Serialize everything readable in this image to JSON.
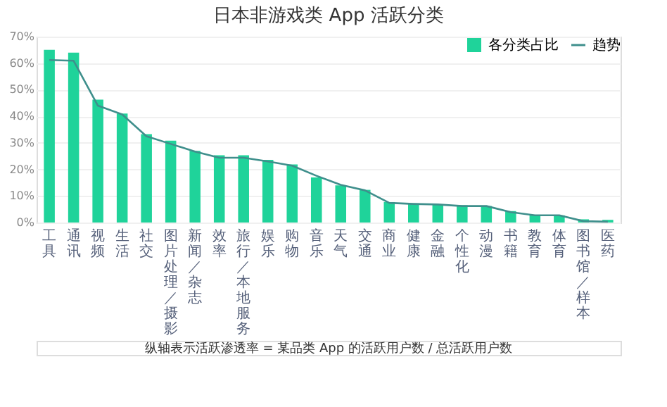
{
  "chart_data": {
    "type": "bar",
    "title": "日本非游戏类 App 活跃分类",
    "categories": [
      "工具",
      "通讯",
      "视频",
      "生活",
      "社交",
      "图片处理／摄影",
      "新闻／杂志",
      "效率",
      "旅行／本地服务",
      "娱乐",
      "购物",
      "音乐",
      "天气",
      "交通",
      "商业",
      "健康",
      "金融",
      "个性化",
      "动漫",
      "书籍",
      "教育",
      "体育",
      "图书馆／样本",
      "医药"
    ],
    "series": [
      {
        "name": "各分类占比",
        "type": "bar",
        "color": "#1fd39a",
        "values": [
          65,
          64,
          46.3,
          41,
          33.3,
          30.8,
          27,
          25.3,
          25.3,
          23.6,
          21.9,
          17,
          14,
          12.3,
          7.7,
          7.2,
          6.8,
          6.5,
          6.2,
          4.3,
          2.7,
          2.7,
          1.2,
          1
        ]
      },
      {
        "name": "趋势",
        "type": "line",
        "color": "#3f8f8c",
        "values": [
          61.2,
          60.9,
          44,
          40.7,
          32.5,
          29.6,
          26.7,
          24.4,
          24.4,
          23,
          21.4,
          17.6,
          14.2,
          12.1,
          7.4,
          7,
          6.8,
          6.2,
          6.2,
          3.9,
          2.7,
          2.7,
          0.5,
          0.3
        ]
      }
    ],
    "ylim": [
      0,
      70
    ],
    "yticks": [
      {
        "value": 0,
        "label": "0%"
      },
      {
        "value": 10,
        "label": "10%"
      },
      {
        "value": 20,
        "label": "20%"
      },
      {
        "value": 30,
        "label": "30%"
      },
      {
        "value": 40,
        "label": "40%"
      },
      {
        "value": 50,
        "label": "50%"
      },
      {
        "value": 60,
        "label": "60%"
      },
      {
        "value": 70,
        "label": "70%"
      }
    ],
    "grid": "y",
    "legend": "top right",
    "marker": "none",
    "line_style": "solid",
    "annotations": [
      "纵轴表示活跃渗透率 = 某品类 App 的活跃用户数 / 总活跃用户数"
    ]
  }
}
